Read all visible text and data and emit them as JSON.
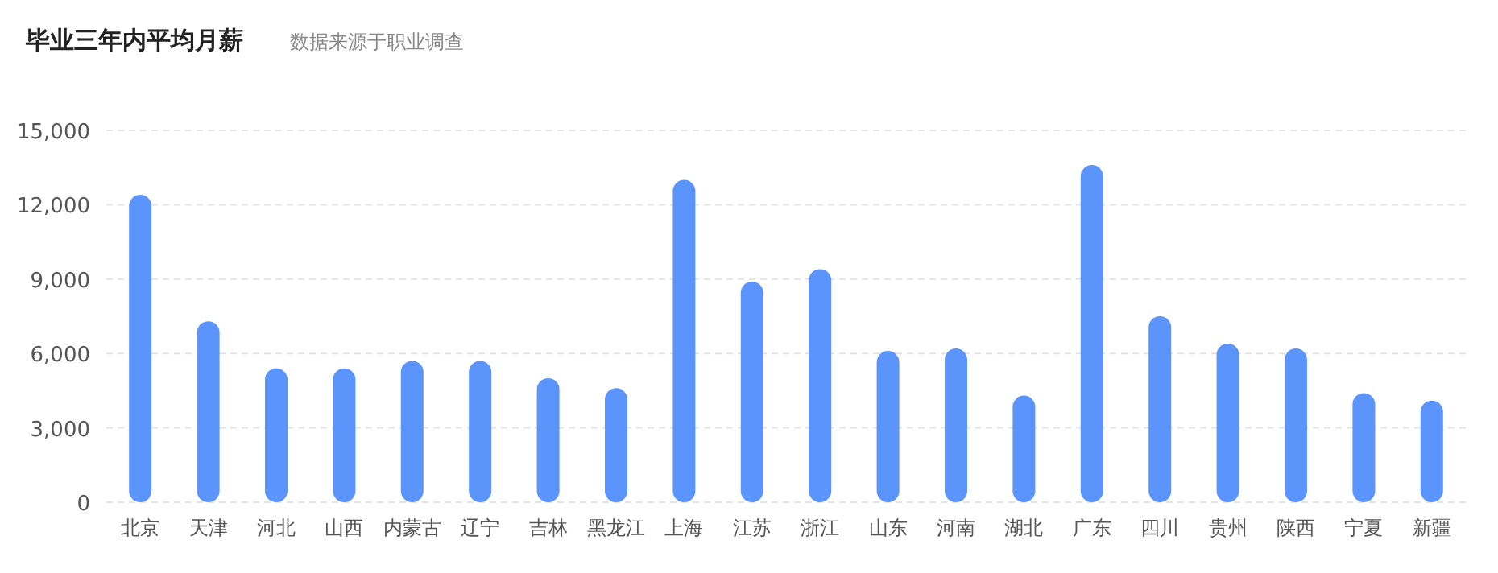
{
  "chart_data": {
    "type": "bar",
    "title": "毕业三年内平均月薪",
    "subtitle": "数据来源于职业调查",
    "categories": [
      "北京",
      "天津",
      "河北",
      "山西",
      "内蒙古",
      "辽宁",
      "吉林",
      "黑龙江",
      "上海",
      "江苏",
      "浙江",
      "山东",
      "河南",
      "湖北",
      "广东",
      "四川",
      "贵州",
      "陕西",
      "宁夏",
      "新疆"
    ],
    "values": [
      12400,
      7300,
      5400,
      5400,
      5700,
      5700,
      5000,
      4600,
      13000,
      8900,
      9400,
      6100,
      6200,
      4300,
      13600,
      7500,
      6400,
      6200,
      4400,
      4100
    ],
    "color": "#5b94fa",
    "ylim": [
      0,
      15000
    ],
    "yticks": [
      0,
      {
        "value": 3000,
        "label": "3,000"
      },
      {
        "value": 6000,
        "label": "6,000"
      },
      {
        "value": 9000,
        "label": "9,000"
      },
      {
        "value": 12000,
        "label": "12,000"
      },
      {
        "value": 15000,
        "label": "15,000"
      }
    ],
    "grid": "y"
  }
}
